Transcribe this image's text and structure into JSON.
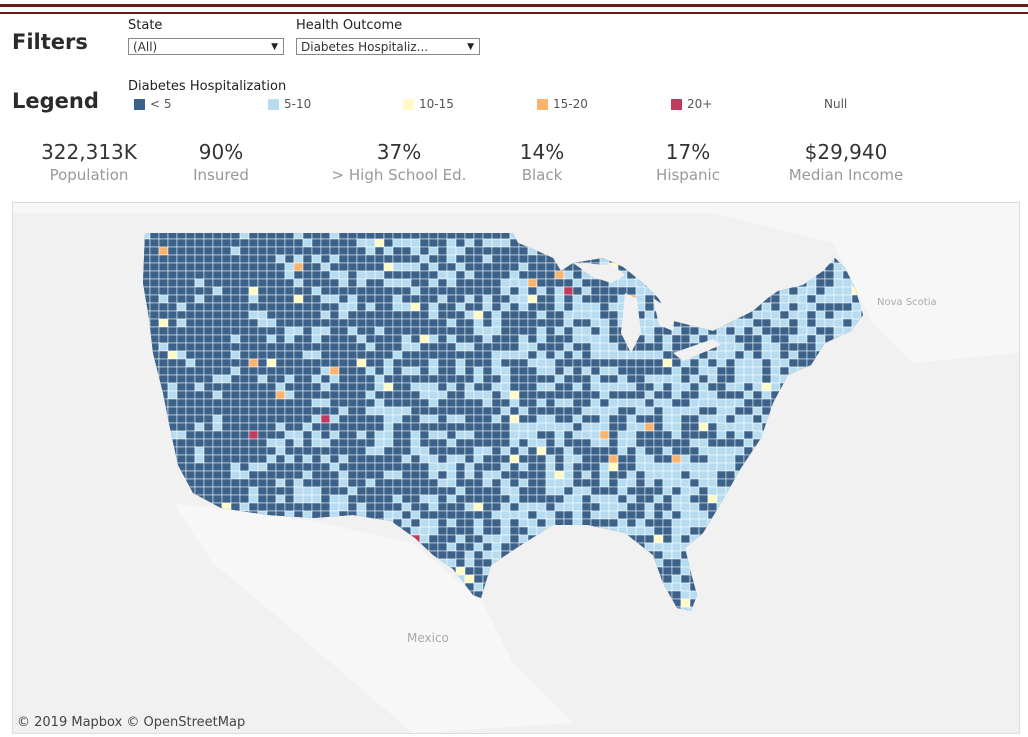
{
  "filters": {
    "title": "Filters",
    "state": {
      "label": "State",
      "value": "(All)"
    },
    "outcome": {
      "label": "Health Outcome",
      "value": "Diabetes Hospitaliz..."
    }
  },
  "legend": {
    "title": "Legend",
    "subtitle": "Diabetes Hospitalization",
    "items": [
      {
        "label": "< 5",
        "color": "#3d6289"
      },
      {
        "label": "5-10",
        "color": "#b8dcef"
      },
      {
        "label": "10-15",
        "color": "#fffac6"
      },
      {
        "label": "15-20",
        "color": "#fbb36f"
      },
      {
        "label": "20+",
        "color": "#c03b5e"
      },
      {
        "label": "Null",
        "color": ""
      }
    ]
  },
  "kpis": [
    {
      "value": "322,313K",
      "label": "Population"
    },
    {
      "value": "90%",
      "label": "Insured"
    },
    {
      "value": "37%",
      "label": "> High School Ed."
    },
    {
      "value": "14%",
      "label": "Black"
    },
    {
      "value": "17%",
      "label": "Hispanic"
    },
    {
      "value": "$29,940",
      "label": "Median Income"
    }
  ],
  "map": {
    "attribution": "© 2019 Mapbox © OpenStreetMap",
    "labels": {
      "mexico": "Mexico",
      "nova_scotia": "Nova Scotia"
    }
  }
}
